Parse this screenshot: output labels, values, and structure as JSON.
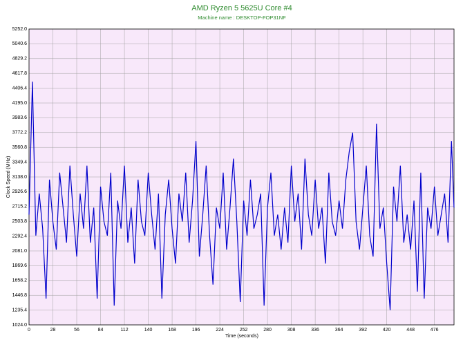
{
  "chart_data": {
    "type": "line",
    "title": "AMD Ryzen 5 5625U Core #4",
    "subtitle": "Machine name : DESKTOP-FOP31NF",
    "xlabel": "Time (seconds)",
    "ylabel": "Clock Speed (MHz)",
    "x": [
      0,
      4,
      8,
      12,
      16,
      20,
      24,
      28,
      32,
      36,
      40,
      44,
      48,
      52,
      56,
      60,
      64,
      68,
      72,
      76,
      80,
      84,
      88,
      92,
      96,
      100,
      104,
      108,
      112,
      116,
      120,
      124,
      128,
      132,
      136,
      140,
      144,
      148,
      152,
      156,
      160,
      164,
      168,
      172,
      176,
      180,
      184,
      188,
      192,
      196,
      200,
      204,
      208,
      212,
      216,
      220,
      224,
      228,
      232,
      236,
      240,
      244,
      248,
      252,
      256,
      260,
      264,
      268,
      272,
      276,
      280,
      284,
      288,
      292,
      296,
      300,
      304,
      308,
      312,
      316,
      320,
      324,
      328,
      332,
      336,
      340,
      344,
      348,
      352,
      356,
      360,
      364,
      368,
      372,
      376,
      380,
      384,
      388,
      392,
      396,
      400,
      404,
      408,
      412,
      416,
      420,
      424,
      428,
      432,
      436,
      440,
      444,
      448,
      452,
      456,
      460,
      464,
      468,
      472,
      476,
      480,
      484,
      488,
      492,
      496,
      499
    ],
    "series": [
      {
        "name": "Clock Speed",
        "color": "#0000cc",
        "values": [
          2600,
          4500,
          2300,
          2900,
          2400,
          1400,
          3100,
          2500,
          2100,
          3200,
          2700,
          2200,
          3300,
          2600,
          2000,
          2900,
          2400,
          3300,
          2200,
          2700,
          1400,
          3000,
          2500,
          2300,
          3200,
          1300,
          2800,
          2400,
          3300,
          2200,
          2700,
          1900,
          3100,
          2500,
          2300,
          3200,
          2600,
          2100,
          2900,
          1400,
          2600,
          3100,
          2400,
          1900,
          2900,
          2500,
          3200,
          2200,
          2800,
          3650,
          2000,
          2600,
          3300,
          2300,
          1600,
          2700,
          2400,
          3200,
          2100,
          2700,
          3400,
          2500,
          1350,
          2800,
          2300,
          3100,
          2400,
          2600,
          2900,
          1300,
          2700,
          3200,
          2300,
          2600,
          2100,
          2700,
          2200,
          3300,
          2500,
          2900,
          2100,
          3400,
          2600,
          2300,
          3100,
          2400,
          2700,
          1900,
          3200,
          2500,
          2300,
          2800,
          2400,
          3100,
          3500,
          3772,
          2500,
          2100,
          2700,
          3300,
          2300,
          2000,
          3900,
          2400,
          2700,
          1900,
          1235,
          3000,
          2500,
          3300,
          2200,
          2600,
          2100,
          2800,
          1500,
          3200,
          1400,
          2700,
          2400,
          3000,
          2300,
          2600,
          2900,
          2200,
          3650,
          2700
        ]
      }
    ],
    "xlim": [
      0,
      499
    ],
    "xticks": [
      0,
      28,
      56,
      84,
      112,
      140,
      168,
      196,
      224,
      252,
      280,
      308,
      336,
      364,
      392,
      420,
      448,
      476
    ],
    "ylim": [
      1024,
      5252
    ],
    "yticks": [
      {
        "value": 1024,
        "label": "1024.0"
      },
      1235.4,
      1446.8,
      1658.2,
      1869.6,
      {
        "value": 2081,
        "label": "2081.0"
      },
      2292.4,
      2503.8,
      2715.2,
      2926.6,
      {
        "value": 3138,
        "label": "3138.0"
      },
      3349.4,
      3560.8,
      3772.2,
      3983.6,
      {
        "value": 4195,
        "label": "4195.0"
      },
      4406.4,
      4617.8,
      4829.2,
      5040.6,
      {
        "value": 5252,
        "label": "5252.0"
      }
    ],
    "grid": true,
    "background": "#f8e8fa"
  }
}
